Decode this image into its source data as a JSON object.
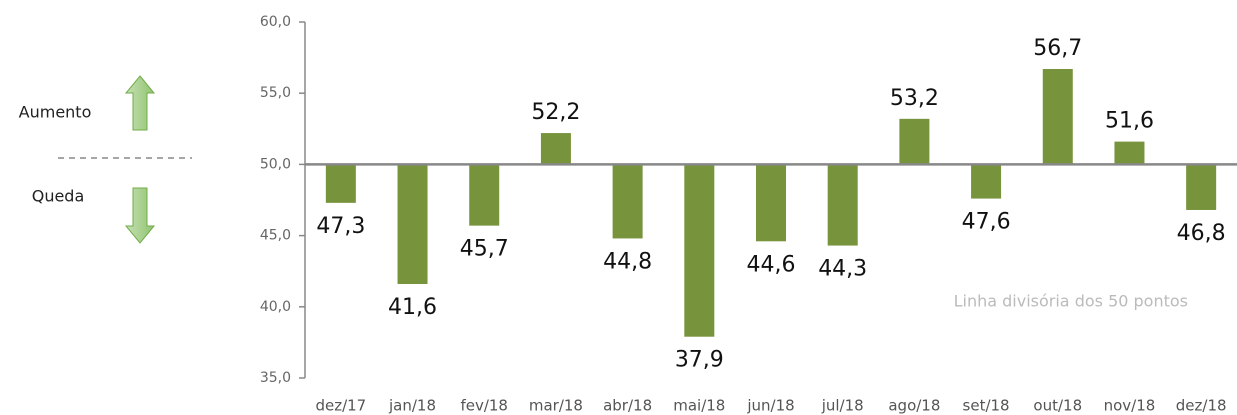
{
  "chart_data": {
    "type": "bar",
    "legend_labels": {
      "up": "Aumento",
      "down": "Queda"
    },
    "annotation": "Linha divisória dos 50 pontos",
    "categories": [
      "dez/17",
      "jan/18",
      "fev/18",
      "mar/18",
      "abr/18",
      "mai/18",
      "jun/18",
      "jul/18",
      "ago/18",
      "set/18",
      "out/18",
      "nov/18",
      "dez/18"
    ],
    "values": [
      47.3,
      41.6,
      45.7,
      52.2,
      44.8,
      37.9,
      44.6,
      44.3,
      53.2,
      47.6,
      56.7,
      51.6,
      46.8
    ],
    "value_labels": [
      "47,3",
      "41,6",
      "45,7",
      "52,2",
      "44,8",
      "37,9",
      "44,6",
      "44,3",
      "53,2",
      "47,6",
      "56,7",
      "51,6",
      "46,8"
    ],
    "color": "#77933c",
    "baseline": 50,
    "ylim": [
      35,
      60
    ],
    "yticks": [
      {
        "value": 35,
        "label": "35,0"
      },
      {
        "value": 40,
        "label": "40,0"
      },
      {
        "value": 45,
        "label": "45,0"
      },
      {
        "value": 50,
        "label": "50,0"
      },
      {
        "value": 55,
        "label": "55,0"
      },
      {
        "value": 60,
        "label": "60,0"
      }
    ]
  }
}
